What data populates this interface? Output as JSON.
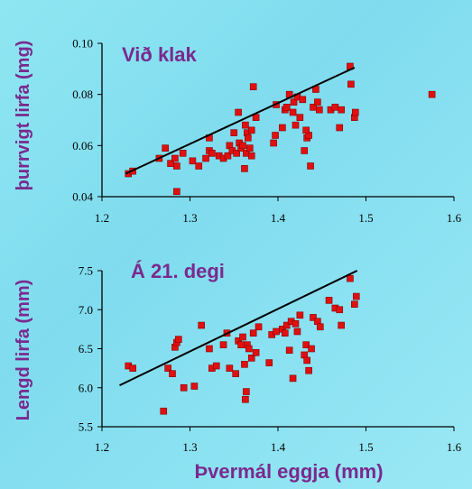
{
  "colors": {
    "title": "#7a2a8e",
    "marker": "#e01010",
    "line": "#000000"
  },
  "chart_data": [
    {
      "type": "scatter",
      "title": "Við klak",
      "xlabel": "",
      "ylabel": "þurrvigt lirfa (mg)",
      "xlim": [
        1.2,
        1.6
      ],
      "ylim": [
        0.04,
        0.1
      ],
      "xticks": [
        "1.2",
        "1.3",
        "1.4",
        "1.5",
        "1.6"
      ],
      "yticks": [
        "0.04",
        "0.06",
        "0.08",
        "0.10"
      ],
      "fit_line": {
        "x": [
          1.227,
          1.487
        ],
        "y": [
          0.049,
          0.0905
        ]
      },
      "points": [
        [
          1.23,
          0.049
        ],
        [
          1.235,
          0.05
        ],
        [
          1.265,
          0.055
        ],
        [
          1.272,
          0.059
        ],
        [
          1.278,
          0.053
        ],
        [
          1.283,
          0.055
        ],
        [
          1.285,
          0.052
        ],
        [
          1.292,
          0.057
        ],
        [
          1.285,
          0.042
        ],
        [
          1.303,
          0.054
        ],
        [
          1.31,
          0.052
        ],
        [
          1.318,
          0.055
        ],
        [
          1.322,
          0.058
        ],
        [
          1.325,
          0.057
        ],
        [
          1.322,
          0.063
        ],
        [
          1.333,
          0.056
        ],
        [
          1.338,
          0.055
        ],
        [
          1.343,
          0.056
        ],
        [
          1.345,
          0.06
        ],
        [
          1.348,
          0.058
        ],
        [
          1.35,
          0.065
        ],
        [
          1.353,
          0.057
        ],
        [
          1.356,
          0.061
        ],
        [
          1.358,
          0.059
        ],
        [
          1.36,
          0.06
        ],
        [
          1.362,
          0.051
        ],
        [
          1.363,
          0.068
        ],
        [
          1.364,
          0.057
        ],
        [
          1.365,
          0.065
        ],
        [
          1.366,
          0.063
        ],
        [
          1.368,
          0.059
        ],
        [
          1.37,
          0.056
        ],
        [
          1.37,
          0.066
        ],
        [
          1.375,
          0.071
        ],
        [
          1.372,
          0.083
        ],
        [
          1.355,
          0.073
        ],
        [
          1.395,
          0.061
        ],
        [
          1.397,
          0.064
        ],
        [
          1.405,
          0.067
        ],
        [
          1.398,
          0.076
        ],
        [
          1.408,
          0.074
        ],
        [
          1.41,
          0.075
        ],
        [
          1.413,
          0.08
        ],
        [
          1.417,
          0.073
        ],
        [
          1.418,
          0.077
        ],
        [
          1.42,
          0.068
        ],
        [
          1.422,
          0.079
        ],
        [
          1.425,
          0.071
        ],
        [
          1.428,
          0.078
        ],
        [
          1.43,
          0.058
        ],
        [
          1.433,
          0.063
        ],
        [
          1.435,
          0.064
        ],
        [
          1.432,
          0.066
        ],
        [
          1.437,
          0.052
        ],
        [
          1.44,
          0.075
        ],
        [
          1.443,
          0.082
        ],
        [
          1.445,
          0.077
        ],
        [
          1.447,
          0.074
        ],
        [
          1.46,
          0.074
        ],
        [
          1.465,
          0.075
        ],
        [
          1.47,
          0.067
        ],
        [
          1.472,
          0.074
        ],
        [
          1.482,
          0.091
        ],
        [
          1.483,
          0.084
        ],
        [
          1.487,
          0.071
        ],
        [
          1.488,
          0.073
        ],
        [
          1.575,
          0.08
        ]
      ]
    },
    {
      "type": "scatter",
      "title": "Á 21. degi",
      "xlabel": "Þvermál eggja (mm)",
      "ylabel": "Lengd lirfa (mm)",
      "xlim": [
        1.2,
        1.6
      ],
      "ylim": [
        5.5,
        7.5
      ],
      "xticks": [
        "1.2",
        "1.3",
        "1.4",
        "1.5",
        "1.6"
      ],
      "yticks": [
        "5.5",
        "6.0",
        "6.5",
        "7.0",
        "7.5"
      ],
      "fit_line": {
        "x": [
          1.22,
          1.49
        ],
        "y": [
          6.03,
          7.5
        ]
      },
      "points": [
        [
          1.23,
          6.28
        ],
        [
          1.235,
          6.25
        ],
        [
          1.27,
          5.7
        ],
        [
          1.275,
          6.25
        ],
        [
          1.28,
          6.18
        ],
        [
          1.283,
          6.52
        ],
        [
          1.285,
          6.58
        ],
        [
          1.287,
          6.62
        ],
        [
          1.293,
          6.0
        ],
        [
          1.305,
          6.02
        ],
        [
          1.313,
          6.8
        ],
        [
          1.322,
          6.5
        ],
        [
          1.325,
          6.25
        ],
        [
          1.33,
          6.28
        ],
        [
          1.338,
          6.55
        ],
        [
          1.342,
          6.7
        ],
        [
          1.345,
          6.25
        ],
        [
          1.352,
          6.18
        ],
        [
          1.355,
          6.6
        ],
        [
          1.358,
          6.55
        ],
        [
          1.36,
          6.65
        ],
        [
          1.362,
          6.3
        ],
        [
          1.364,
          5.95
        ],
        [
          1.363,
          5.85
        ],
        [
          1.365,
          6.55
        ],
        [
          1.367,
          6.5
        ],
        [
          1.37,
          6.38
        ],
        [
          1.372,
          6.7
        ],
        [
          1.375,
          6.45
        ],
        [
          1.378,
          6.78
        ],
        [
          1.39,
          6.32
        ],
        [
          1.393,
          6.68
        ],
        [
          1.398,
          6.72
        ],
        [
          1.405,
          6.75
        ],
        [
          1.408,
          6.7
        ],
        [
          1.41,
          6.8
        ],
        [
          1.413,
          6.48
        ],
        [
          1.415,
          6.85
        ],
        [
          1.417,
          6.12
        ],
        [
          1.42,
          6.82
        ],
        [
          1.422,
          6.72
        ],
        [
          1.425,
          6.93
        ],
        [
          1.43,
          6.42
        ],
        [
          1.432,
          6.55
        ],
        [
          1.433,
          6.35
        ],
        [
          1.435,
          6.22
        ],
        [
          1.438,
          6.5
        ],
        [
          1.44,
          6.9
        ],
        [
          1.445,
          6.85
        ],
        [
          1.448,
          6.78
        ],
        [
          1.458,
          7.12
        ],
        [
          1.465,
          7.02
        ],
        [
          1.47,
          7.0
        ],
        [
          1.472,
          6.8
        ],
        [
          1.482,
          7.4
        ],
        [
          1.487,
          7.07
        ],
        [
          1.489,
          7.17
        ]
      ]
    }
  ]
}
